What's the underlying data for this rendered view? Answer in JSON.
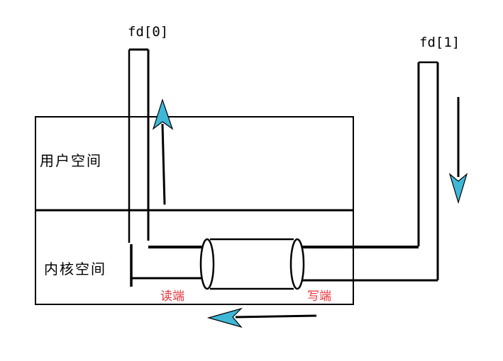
{
  "labels": {
    "fd0": "fd[0]",
    "fd1": "fd[1]",
    "user_space": "用户空间",
    "kernel_space": "内核空间",
    "read_end": "读端",
    "write_end": "写端"
  },
  "colors": {
    "line": "#000000",
    "arrow": "#3fb8d8",
    "end_label": "#e8333c",
    "background": "#ffffff"
  }
}
